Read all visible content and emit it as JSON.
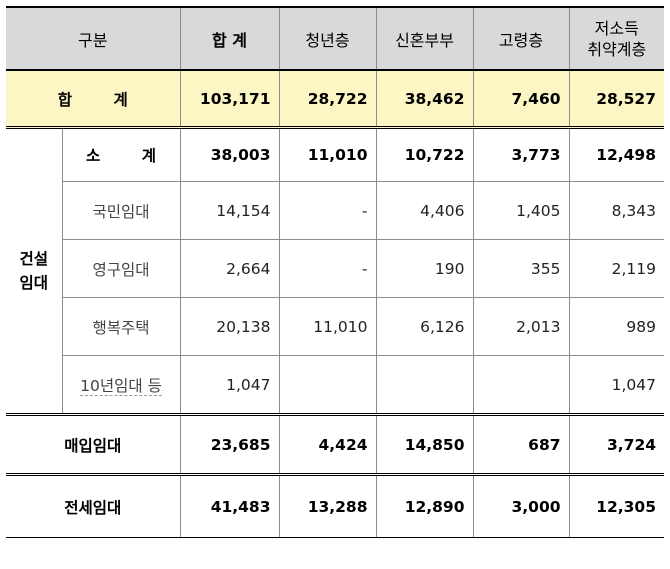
{
  "header": {
    "col0": "구분",
    "col1": "합 계",
    "col2": "청년층",
    "col3": "신혼부부",
    "col4": "고령층",
    "col5_line1": "저소득",
    "col5_line2": "취약계층"
  },
  "total": {
    "label": "합 계",
    "values": [
      "103,171",
      "28,722",
      "38,462",
      "7,460",
      "28,527"
    ]
  },
  "construction": {
    "group_line1": "건설",
    "group_line2": "임대",
    "subtotal": {
      "label": "소 계",
      "values": [
        "38,003",
        "11,010",
        "10,722",
        "3,773",
        "12,498"
      ]
    },
    "rows": [
      {
        "label": "국민임대",
        "values": [
          "14,154",
          "-",
          "4,406",
          "1,405",
          "8,343"
        ]
      },
      {
        "label": "영구임대",
        "values": [
          "2,664",
          "-",
          "190",
          "355",
          "2,119"
        ]
      },
      {
        "label": "행복주택",
        "values": [
          "20,138",
          "11,010",
          "6,126",
          "2,013",
          "989"
        ]
      },
      {
        "label": "10년임대 등",
        "values": [
          "1,047",
          "",
          "",
          "",
          "1,047"
        ]
      }
    ]
  },
  "purchase": {
    "label": "매입임대",
    "values": [
      "23,685",
      "4,424",
      "14,850",
      "687",
      "3,724"
    ]
  },
  "jeonse": {
    "label": "전세임대",
    "values": [
      "41,483",
      "13,288",
      "12,890",
      "3,000",
      "12,305"
    ]
  }
}
